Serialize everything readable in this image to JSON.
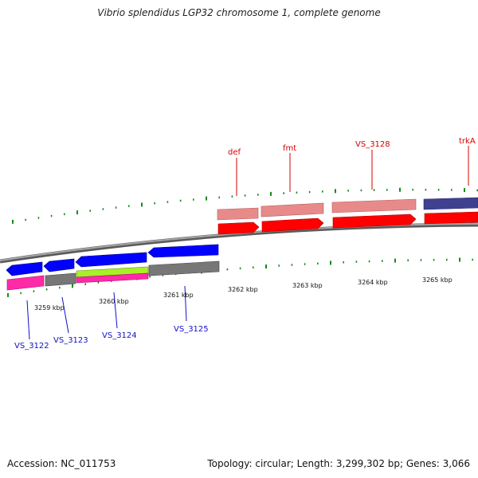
{
  "header": {
    "title": "Vibrio splendidus LGP32 chromosome 1, complete genome"
  },
  "footer": {
    "accession": "Accession: NC_011753",
    "stats": "Topology: circular; Length: 3,299,302 bp; Genes: 3,066"
  },
  "colors": {
    "backbone": "#808080",
    "tick": "#1a8a1a",
    "top_label": "#d40000",
    "bottom_label": "#1010c8",
    "cds_forward": "#ff0000",
    "cds_reverse": "#0000ff",
    "feature_pink": "#e88a8a",
    "feature_magenta": "#ff2aa8",
    "feature_gray": "#777777",
    "feature_lime": "#a8f028",
    "feature_navy": "#404090"
  },
  "scale": {
    "unit": "kbp",
    "labels": [
      "3259 kbp",
      "3260 kbp",
      "3261 kbp",
      "3262 kbp",
      "3263 kbp",
      "3264 kbp",
      "3265 kbp"
    ]
  },
  "genes": {
    "top": [
      {
        "label": "def"
      },
      {
        "label": "fmt"
      },
      {
        "label": "VS_3128"
      },
      {
        "label": "trkA"
      }
    ],
    "bottom": [
      {
        "label": "VS_3122"
      },
      {
        "label": "VS_3123"
      },
      {
        "label": "VS_3124"
      },
      {
        "label": "VS_3125"
      }
    ]
  }
}
